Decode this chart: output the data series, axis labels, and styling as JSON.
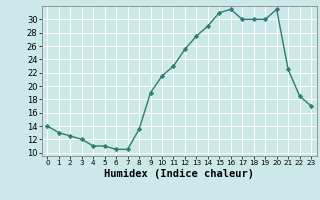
{
  "x": [
    0,
    1,
    2,
    3,
    4,
    5,
    6,
    7,
    8,
    9,
    10,
    11,
    12,
    13,
    14,
    15,
    16,
    17,
    18,
    19,
    20,
    21,
    22,
    23
  ],
  "y": [
    14,
    13,
    12.5,
    12,
    11,
    11,
    10.5,
    10.5,
    13.5,
    19,
    21.5,
    23,
    25.5,
    27.5,
    29,
    31,
    31.5,
    30,
    30,
    30,
    31.5,
    22.5,
    18.5,
    17
  ],
  "line_color": "#2e7d6e",
  "marker": "D",
  "marker_size": 2.2,
  "linewidth": 1.0,
  "xlim": [
    -0.5,
    23.5
  ],
  "ylim": [
    9.5,
    32
  ],
  "yticks": [
    10,
    12,
    14,
    16,
    18,
    20,
    22,
    24,
    26,
    28,
    30
  ],
  "xticks": [
    0,
    1,
    2,
    3,
    4,
    5,
    6,
    7,
    8,
    9,
    10,
    11,
    12,
    13,
    14,
    15,
    16,
    17,
    18,
    19,
    20,
    21,
    22,
    23
  ],
  "xlabel": "Humidex (Indice chaleur)",
  "xlabel_fontsize": 7.5,
  "ytick_fontsize": 6.0,
  "xtick_fontsize": 5.2,
  "bg_color": "#cce8e8",
  "grid_color": "#ffffff",
  "spine_color": "#888888"
}
